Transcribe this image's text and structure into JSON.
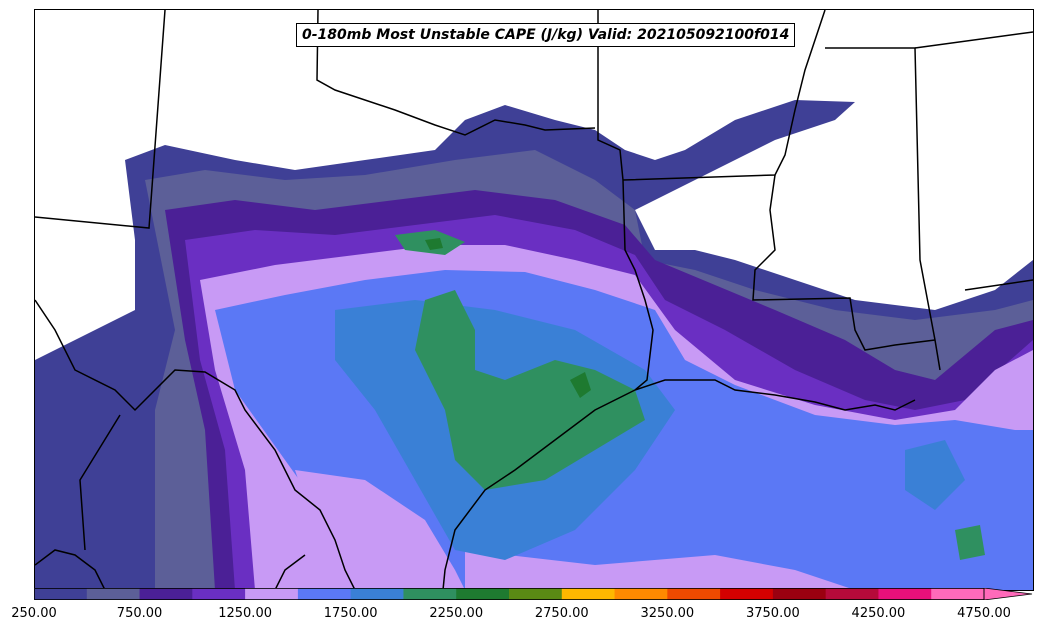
{
  "map": {
    "title": "0-180mb Most Unstable CAPE (J/kg) Valid: 202105092100f014",
    "colorbar": {
      "colors": [
        "#3f4096",
        "#5c5f98",
        "#4b2096",
        "#6a2fc2",
        "#c89af5",
        "#5b78f5",
        "#3a80d6",
        "#2f9060",
        "#1e7a30",
        "#5a8a14",
        "#ffb800",
        "#ff8a00",
        "#ee4a00",
        "#d40000",
        "#9a0010",
        "#b50a3a",
        "#e8107a",
        "#ff6aba"
      ],
      "tick_labels": [
        "250.00",
        "750.00",
        "1250.00",
        "1750.00",
        "2250.00",
        "2750.00",
        "3250.00",
        "3750.00",
        "4250.00",
        "4750.00"
      ]
    }
  }
}
